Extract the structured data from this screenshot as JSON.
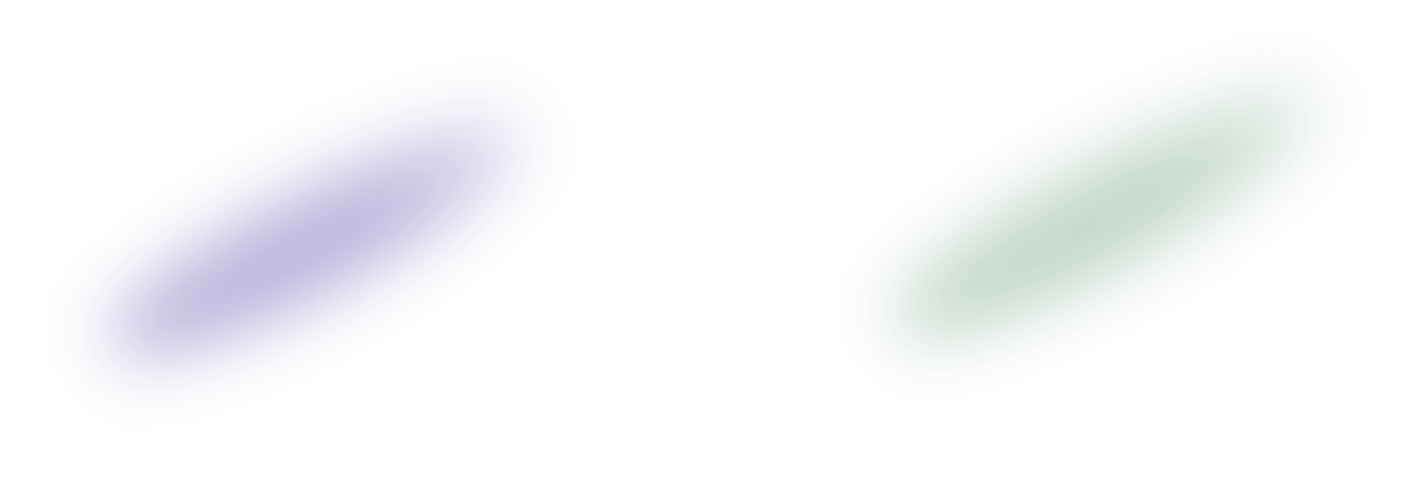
{
  "decor": {
    "blobs": [
      {
        "color": "#b3aed8"
      },
      {
        "color": "#bcd2c3"
      }
    ]
  }
}
